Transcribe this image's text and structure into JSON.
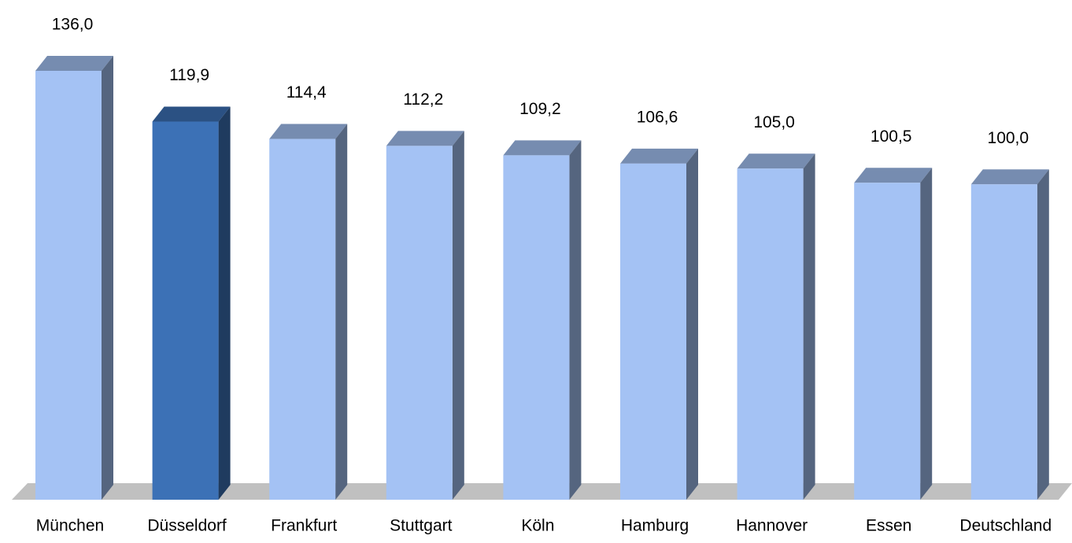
{
  "chart_data": {
    "type": "bar3d",
    "categories": [
      "München",
      "Düsseldorf",
      "Frankfurt",
      "Stuttgart",
      "Köln",
      "Hamburg",
      "Hannover",
      "Essen",
      "Deutschland"
    ],
    "values": [
      136.0,
      119.9,
      114.4,
      112.2,
      109.2,
      106.6,
      105.0,
      100.5,
      100.0
    ],
    "value_labels": [
      "136,0",
      "119,9",
      "114,4",
      "112,2",
      "109,2",
      "106,6",
      "105,0",
      "100,5",
      "100,0"
    ],
    "colors": [
      "#a4c2f4",
      "#3c71b6",
      "#a4c2f4",
      "#a4c2f4",
      "#a4c2f4",
      "#a4c2f4",
      "#a4c2f4",
      "#a4c2f4",
      "#a4c2f4"
    ]
  }
}
